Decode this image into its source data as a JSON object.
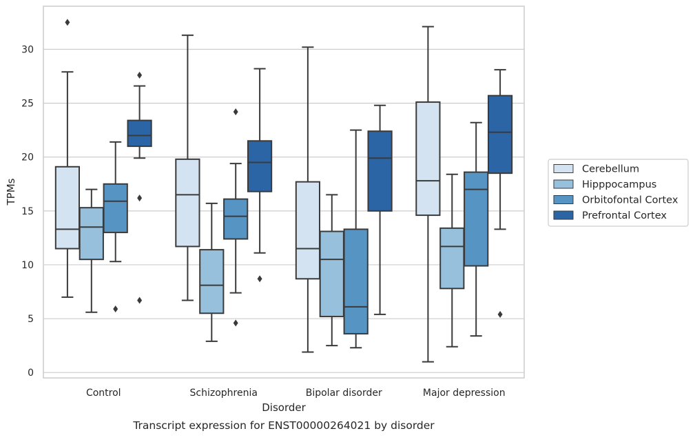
{
  "chart_data": {
    "type": "box",
    "title": "",
    "caption": "Transcript expression for ENST00000264021 by disorder",
    "xlabel": "Disorder",
    "ylabel": "TPMs",
    "ylim": [
      -0.5,
      34
    ],
    "yticks": [
      0,
      5,
      10,
      15,
      20,
      25,
      30
    ],
    "grid": "horizontal",
    "legend_position": "right",
    "categories": [
      "Control",
      "Schizophrenia",
      "Bipolar disorder",
      "Major depression"
    ],
    "series": [
      {
        "name": "Cerebellum",
        "color": "#d4e3f2",
        "boxes": [
          {
            "q1": 11.5,
            "median": 13.3,
            "q3": 19.1,
            "whislo": 7.0,
            "whishi": 27.9,
            "fliers": [
              32.5
            ]
          },
          {
            "q1": 11.7,
            "median": 16.5,
            "q3": 19.8,
            "whislo": 6.7,
            "whishi": 31.3,
            "fliers": []
          },
          {
            "q1": 8.7,
            "median": 11.5,
            "q3": 17.7,
            "whislo": 1.9,
            "whishi": 30.2,
            "fliers": []
          },
          {
            "q1": 14.6,
            "median": 17.8,
            "q3": 25.1,
            "whislo": 1.0,
            "whishi": 32.1,
            "fliers": []
          }
        ]
      },
      {
        "name": "Hipppocampus",
        "color": "#96c0dc",
        "boxes": [
          {
            "q1": 10.5,
            "median": 13.5,
            "q3": 15.3,
            "whislo": 5.6,
            "whishi": 17.0,
            "fliers": []
          },
          {
            "q1": 5.5,
            "median": 8.1,
            "q3": 11.4,
            "whislo": 2.9,
            "whishi": 15.7,
            "fliers": []
          },
          {
            "q1": 5.2,
            "median": 10.5,
            "q3": 13.1,
            "whislo": 2.5,
            "whishi": 16.5,
            "fliers": []
          },
          {
            "q1": 7.8,
            "median": 11.7,
            "q3": 13.4,
            "whislo": 2.4,
            "whishi": 18.4,
            "fliers": []
          }
        ]
      },
      {
        "name": "Orbitofontal Cortex",
        "color": "#5694c3",
        "boxes": [
          {
            "q1": 13.0,
            "median": 15.9,
            "q3": 17.5,
            "whislo": 10.3,
            "whishi": 21.4,
            "fliers": [
              5.9
            ]
          },
          {
            "q1": 12.4,
            "median": 14.5,
            "q3": 16.1,
            "whislo": 7.4,
            "whishi": 19.4,
            "fliers": [
              24.2,
              4.6
            ]
          },
          {
            "q1": 3.6,
            "median": 6.1,
            "q3": 13.3,
            "whislo": 2.3,
            "whishi": 22.5,
            "fliers": []
          },
          {
            "q1": 9.9,
            "median": 17.0,
            "q3": 18.6,
            "whislo": 3.4,
            "whishi": 23.2,
            "fliers": []
          }
        ]
      },
      {
        "name": "Prefrontal Cortex",
        "color": "#2b65a6",
        "boxes": [
          {
            "q1": 21.0,
            "median": 22.0,
            "q3": 23.4,
            "whislo": 19.9,
            "whishi": 26.6,
            "fliers": [
              27.6,
              16.2,
              6.7
            ]
          },
          {
            "q1": 16.8,
            "median": 19.5,
            "q3": 21.5,
            "whislo": 11.1,
            "whishi": 28.2,
            "fliers": [
              8.7
            ]
          },
          {
            "q1": 15.0,
            "median": 19.9,
            "q3": 22.4,
            "whislo": 5.4,
            "whishi": 24.8,
            "fliers": []
          },
          {
            "q1": 18.5,
            "median": 22.3,
            "q3": 25.7,
            "whislo": 13.3,
            "whishi": 28.1,
            "fliers": [
              5.4
            ]
          }
        ]
      }
    ]
  }
}
